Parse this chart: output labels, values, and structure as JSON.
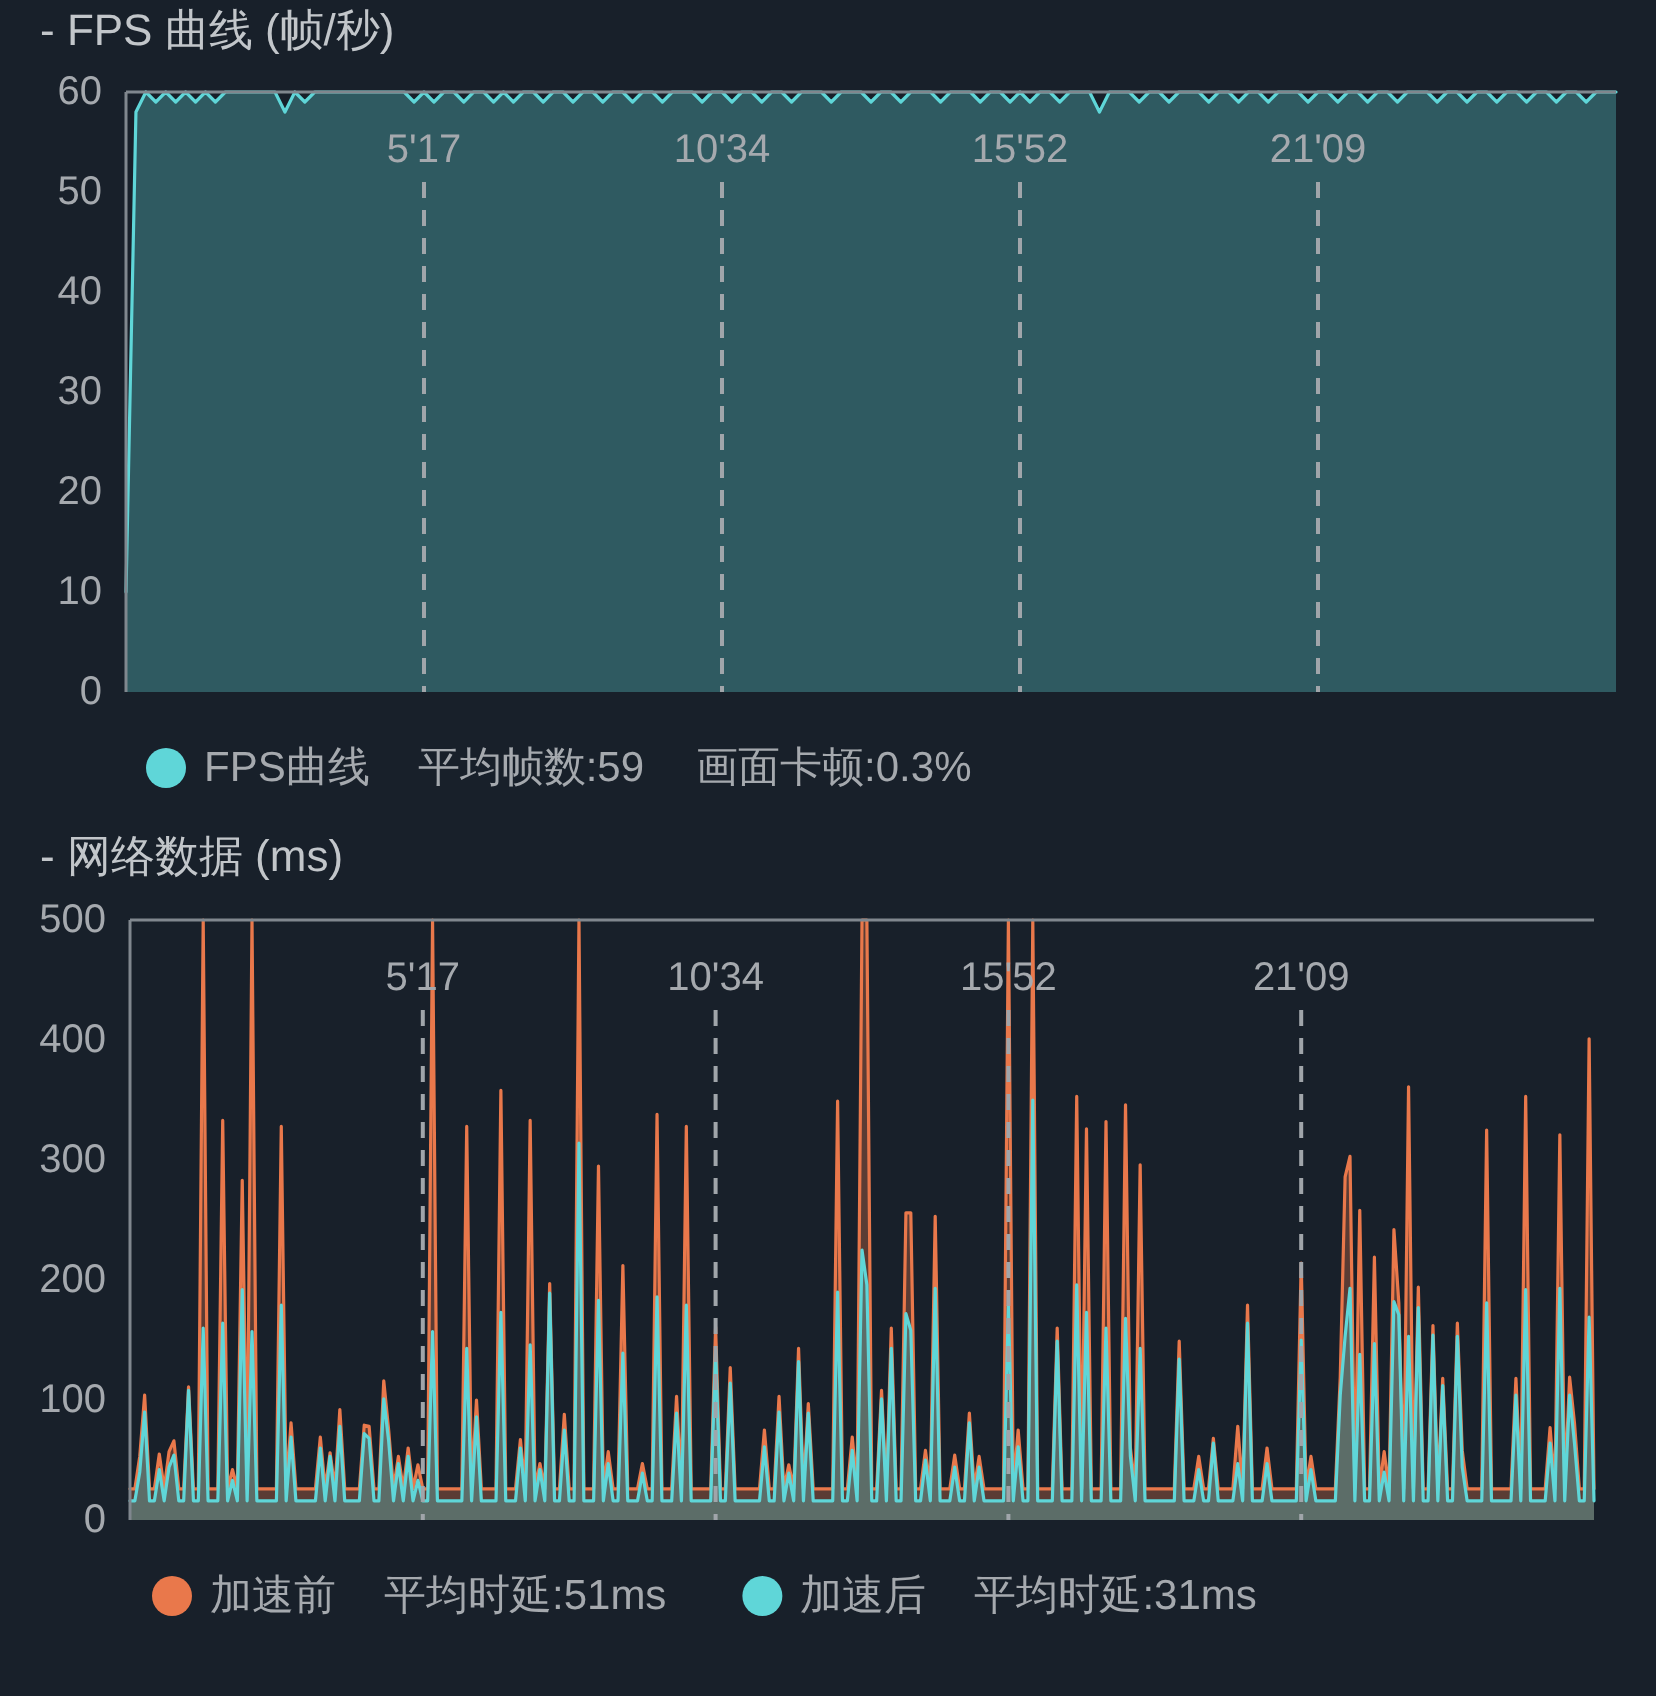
{
  "chart_data": [
    {
      "type": "area",
      "title": "- FPS 曲线 (帧/秒)",
      "categories": [
        null,
        null,
        null,
        null,
        null,
        null,
        null,
        null,
        null,
        null,
        null,
        null,
        null,
        null,
        null,
        null,
        null,
        null,
        null,
        null,
        null,
        null,
        null,
        null,
        null,
        null,
        null,
        null,
        null,
        null,
        "5'17",
        null,
        null,
        null,
        null,
        null,
        null,
        null,
        null,
        null,
        null,
        null,
        null,
        null,
        null,
        null,
        null,
        null,
        null,
        null,
        null,
        null,
        null,
        null,
        null,
        null,
        null,
        null,
        null,
        null,
        "10'34",
        null,
        null,
        null,
        null,
        null,
        null,
        null,
        null,
        null,
        null,
        null,
        null,
        null,
        null,
        null,
        null,
        null,
        null,
        null,
        null,
        null,
        null,
        null,
        null,
        null,
        null,
        null,
        null,
        null,
        "15'52",
        null,
        null,
        null,
        null,
        null,
        null,
        null,
        null,
        null,
        null,
        null,
        null,
        null,
        null,
        null,
        null,
        null,
        null,
        null,
        null,
        null,
        null,
        null,
        null,
        null,
        null,
        null,
        null,
        null,
        "21'09",
        null,
        null,
        null,
        null,
        null,
        null,
        null,
        null,
        null,
        null,
        null,
        null,
        null,
        null,
        null,
        null,
        null,
        null,
        null,
        null,
        null,
        null,
        null,
        null,
        null,
        null,
        null,
        null,
        null,
        null
      ],
      "series": [
        {
          "name": "FPS曲线",
          "color": "#5fd6d8",
          "values": [
            10,
            58,
            60,
            59,
            60,
            59,
            60,
            59,
            60,
            59,
            60,
            60,
            60,
            60,
            60,
            60,
            58,
            60,
            59,
            60,
            60,
            60,
            60,
            60,
            60,
            60,
            60,
            60,
            60,
            59,
            60,
            59,
            60,
            60,
            59,
            60,
            60,
            59,
            60,
            59,
            60,
            60,
            59,
            60,
            60,
            59,
            60,
            60,
            59,
            60,
            60,
            59,
            60,
            60,
            59,
            60,
            60,
            60,
            59,
            60,
            60,
            59,
            60,
            60,
            59,
            60,
            60,
            59,
            60,
            60,
            60,
            59,
            60,
            60,
            60,
            59,
            60,
            60,
            59,
            60,
            60,
            60,
            59,
            60,
            60,
            60,
            59,
            60,
            60,
            59,
            60,
            59,
            60,
            60,
            59,
            60,
            60,
            60,
            58,
            60,
            60,
            60,
            59,
            60,
            60,
            59,
            60,
            60,
            60,
            59,
            60,
            60,
            59,
            60,
            60,
            59,
            60,
            60,
            60,
            59,
            60,
            60,
            59,
            60,
            60,
            59,
            60,
            60,
            59,
            60,
            60,
            60,
            59,
            60,
            60,
            59,
            60,
            60,
            59,
            60,
            60,
            59,
            60,
            60,
            59,
            60,
            60,
            59,
            60,
            60,
            60
          ]
        }
      ],
      "ylim": [
        0,
        60
      ],
      "yticks": [
        0,
        10,
        20,
        30,
        40,
        50,
        60
      ],
      "grid": "x",
      "legend": "bottom",
      "annotations": [
        "平均帧数:59",
        "画面卡顿:0.3%"
      ]
    },
    {
      "type": "area",
      "title": "- 网络数据 (ms)",
      "categories": [
        null,
        null,
        null,
        null,
        null,
        null,
        null,
        null,
        null,
        null,
        null,
        null,
        null,
        null,
        null,
        null,
        null,
        null,
        null,
        null,
        null,
        null,
        null,
        null,
        null,
        null,
        null,
        null,
        null,
        null,
        null,
        null,
        null,
        null,
        null,
        null,
        null,
        null,
        null,
        null,
        null,
        null,
        null,
        null,
        null,
        null,
        null,
        null,
        null,
        null,
        null,
        null,
        null,
        null,
        null,
        null,
        null,
        null,
        null,
        null,
        "5'17",
        null,
        null,
        null,
        null,
        null,
        null,
        null,
        null,
        null,
        null,
        null,
        null,
        null,
        null,
        null,
        null,
        null,
        null,
        null,
        null,
        null,
        null,
        null,
        null,
        null,
        null,
        null,
        null,
        null,
        null,
        null,
        null,
        null,
        null,
        null,
        null,
        null,
        null,
        null,
        null,
        null,
        null,
        null,
        null,
        null,
        null,
        null,
        null,
        null,
        null,
        null,
        null,
        null,
        null,
        null,
        null,
        null,
        null,
        null,
        "10'34",
        null,
        null,
        null,
        null,
        null,
        null,
        null,
        null,
        null,
        null,
        null,
        null,
        null,
        null,
        null,
        null,
        null,
        null,
        null,
        null,
        null,
        null,
        null,
        null,
        null,
        null,
        null,
        null,
        null,
        null,
        null,
        null,
        null,
        null,
        null,
        null,
        null,
        null,
        null,
        null,
        null,
        null,
        null,
        null,
        null,
        null,
        null,
        null,
        null,
        null,
        null,
        null,
        null,
        null,
        null,
        null,
        null,
        null,
        null,
        "15'52",
        null,
        null,
        null,
        null,
        null,
        null,
        null,
        null,
        null,
        null,
        null,
        null,
        null,
        null,
        null,
        null,
        null,
        null,
        null,
        null,
        null,
        null,
        null,
        null,
        null,
        null,
        null,
        null,
        null,
        null,
        null,
        null,
        null,
        null,
        null,
        null,
        null,
        null,
        null,
        null,
        null,
        null,
        null,
        null,
        null,
        null,
        null,
        null,
        null,
        null,
        null,
        null,
        null,
        null,
        null,
        null,
        null,
        null,
        null,
        "21'09",
        null,
        null,
        null,
        null,
        null,
        null,
        null,
        null,
        null,
        null,
        null,
        null,
        null,
        null,
        null,
        null,
        null,
        null,
        null,
        null,
        null,
        null,
        null,
        null,
        null,
        null,
        null,
        null,
        null,
        null,
        null,
        null,
        null,
        null,
        null,
        null,
        null,
        null,
        null,
        null,
        null,
        null,
        null,
        null,
        null,
        null,
        null,
        null,
        null,
        null,
        null,
        null,
        null,
        null,
        null,
        null,
        null,
        null,
        null,
        null
      ],
      "series": [
        {
          "name": "加速前",
          "color": "#e9784b",
          "values": [
            26,
            26,
            53,
            104,
            26,
            26,
            55,
            26,
            57,
            66,
            26,
            26,
            111,
            26,
            26,
            500,
            26,
            26,
            26,
            333,
            26,
            42,
            26,
            283,
            26,
            500,
            26,
            26,
            26,
            26,
            26,
            328,
            26,
            81,
            26,
            26,
            26,
            26,
            26,
            69,
            26,
            56,
            26,
            92,
            26,
            26,
            26,
            26,
            79,
            78,
            26,
            26,
            116,
            75,
            26,
            53,
            26,
            60,
            26,
            46,
            26,
            26,
            500,
            26,
            26,
            26,
            26,
            26,
            26,
            328,
            26,
            100,
            26,
            26,
            26,
            26,
            358,
            26,
            26,
            26,
            67,
            26,
            333,
            26,
            47,
            26,
            197,
            26,
            26,
            88,
            26,
            26,
            500,
            26,
            26,
            26,
            295,
            26,
            57,
            26,
            26,
            212,
            26,
            26,
            26,
            47,
            26,
            26,
            338,
            26,
            26,
            26,
            103,
            26,
            328,
            26,
            26,
            26,
            26,
            26,
            161,
            26,
            26,
            127,
            26,
            26,
            26,
            26,
            26,
            26,
            75,
            26,
            26,
            103,
            26,
            46,
            26,
            143,
            26,
            97,
            26,
            26,
            26,
            26,
            26,
            349,
            26,
            26,
            69,
            26,
            500,
            500,
            26,
            26,
            108,
            26,
            160,
            26,
            26,
            256,
            256,
            26,
            26,
            58,
            26,
            253,
            26,
            26,
            26,
            54,
            26,
            26,
            89,
            26,
            53,
            26,
            26,
            26,
            26,
            26,
            500,
            26,
            75,
            26,
            26,
            500,
            26,
            26,
            26,
            26,
            160,
            26,
            26,
            26,
            353,
            26,
            326,
            26,
            26,
            26,
            332,
            26,
            26,
            26,
            346,
            60,
            26,
            296,
            26,
            26,
            26,
            26,
            26,
            26,
            26,
            149,
            26,
            26,
            26,
            53,
            26,
            26,
            68,
            26,
            26,
            26,
            26,
            78,
            26,
            179,
            26,
            26,
            26,
            60,
            26,
            26,
            26,
            26,
            26,
            26,
            214,
            26,
            53,
            26,
            26,
            26,
            26,
            26,
            119,
            286,
            303,
            26,
            258,
            26,
            26,
            219,
            26,
            57,
            26,
            242,
            181,
            26,
            361,
            26,
            194,
            26,
            26,
            162,
            26,
            118,
            26,
            26,
            164,
            58,
            26,
            26,
            26,
            26,
            325,
            26,
            26,
            26,
            26,
            26,
            118,
            26,
            353,
            26,
            26,
            26,
            26,
            77,
            26,
            321,
            26,
            119,
            81,
            26,
            26,
            401,
            26
          ]
        },
        {
          "name": "加速后",
          "color": "#5fd6d8",
          "values": [
            16,
            16,
            40,
            90,
            16,
            16,
            42,
            16,
            44,
            54,
            16,
            16,
            108,
            16,
            16,
            160,
            16,
            16,
            16,
            164,
            16,
            33,
            16,
            192,
            16,
            157,
            16,
            16,
            16,
            16,
            16,
            179,
            16,
            69,
            16,
            16,
            16,
            16,
            16,
            60,
            16,
            53,
            16,
            78,
            16,
            16,
            16,
            16,
            72,
            68,
            16,
            16,
            101,
            66,
            16,
            47,
            16,
            53,
            16,
            33,
            16,
            16,
            157,
            16,
            16,
            16,
            16,
            16,
            16,
            143,
            16,
            86,
            16,
            16,
            16,
            16,
            173,
            16,
            16,
            16,
            60,
            16,
            146,
            16,
            42,
            16,
            189,
            16,
            16,
            75,
            16,
            16,
            314,
            16,
            16,
            16,
            183,
            16,
            47,
            16,
            16,
            139,
            16,
            16,
            16,
            39,
            16,
            16,
            186,
            16,
            16,
            16,
            89,
            16,
            179,
            16,
            16,
            16,
            16,
            16,
            142,
            16,
            16,
            114,
            16,
            16,
            16,
            16,
            16,
            16,
            61,
            16,
            16,
            90,
            16,
            39,
            16,
            132,
            16,
            89,
            16,
            16,
            16,
            16,
            16,
            190,
            16,
            16,
            58,
            16,
            225,
            196,
            16,
            16,
            101,
            16,
            143,
            16,
            16,
            172,
            158,
            16,
            16,
            50,
            16,
            193,
            16,
            16,
            16,
            44,
            16,
            16,
            81,
            16,
            44,
            16,
            16,
            16,
            16,
            16,
            179,
            16,
            61,
            16,
            16,
            350,
            16,
            16,
            16,
            16,
            149,
            16,
            16,
            16,
            196,
            16,
            173,
            16,
            16,
            16,
            160,
            16,
            16,
            16,
            168,
            53,
            16,
            143,
            16,
            16,
            16,
            16,
            16,
            16,
            16,
            134,
            16,
            16,
            16,
            42,
            16,
            16,
            64,
            16,
            16,
            16,
            16,
            47,
            16,
            164,
            16,
            16,
            16,
            47,
            16,
            16,
            16,
            16,
            16,
            16,
            150,
            16,
            42,
            16,
            16,
            16,
            16,
            16,
            104,
            153,
            193,
            16,
            138,
            16,
            16,
            147,
            16,
            40,
            16,
            182,
            171,
            16,
            153,
            16,
            177,
            16,
            16,
            154,
            16,
            112,
            16,
            16,
            153,
            44,
            16,
            16,
            16,
            16,
            181,
            16,
            16,
            16,
            16,
            16,
            104,
            16,
            192,
            16,
            16,
            16,
            16,
            64,
            16,
            193,
            16,
            104,
            64,
            16,
            16,
            169,
            16
          ]
        }
      ],
      "ylim": [
        0,
        500
      ],
      "yticks": [
        0,
        100,
        200,
        300,
        400,
        500
      ],
      "grid": "x",
      "legend": "bottom",
      "annotations": [
        "平均时延:51ms",
        "平均时延:31ms"
      ]
    }
  ]
}
